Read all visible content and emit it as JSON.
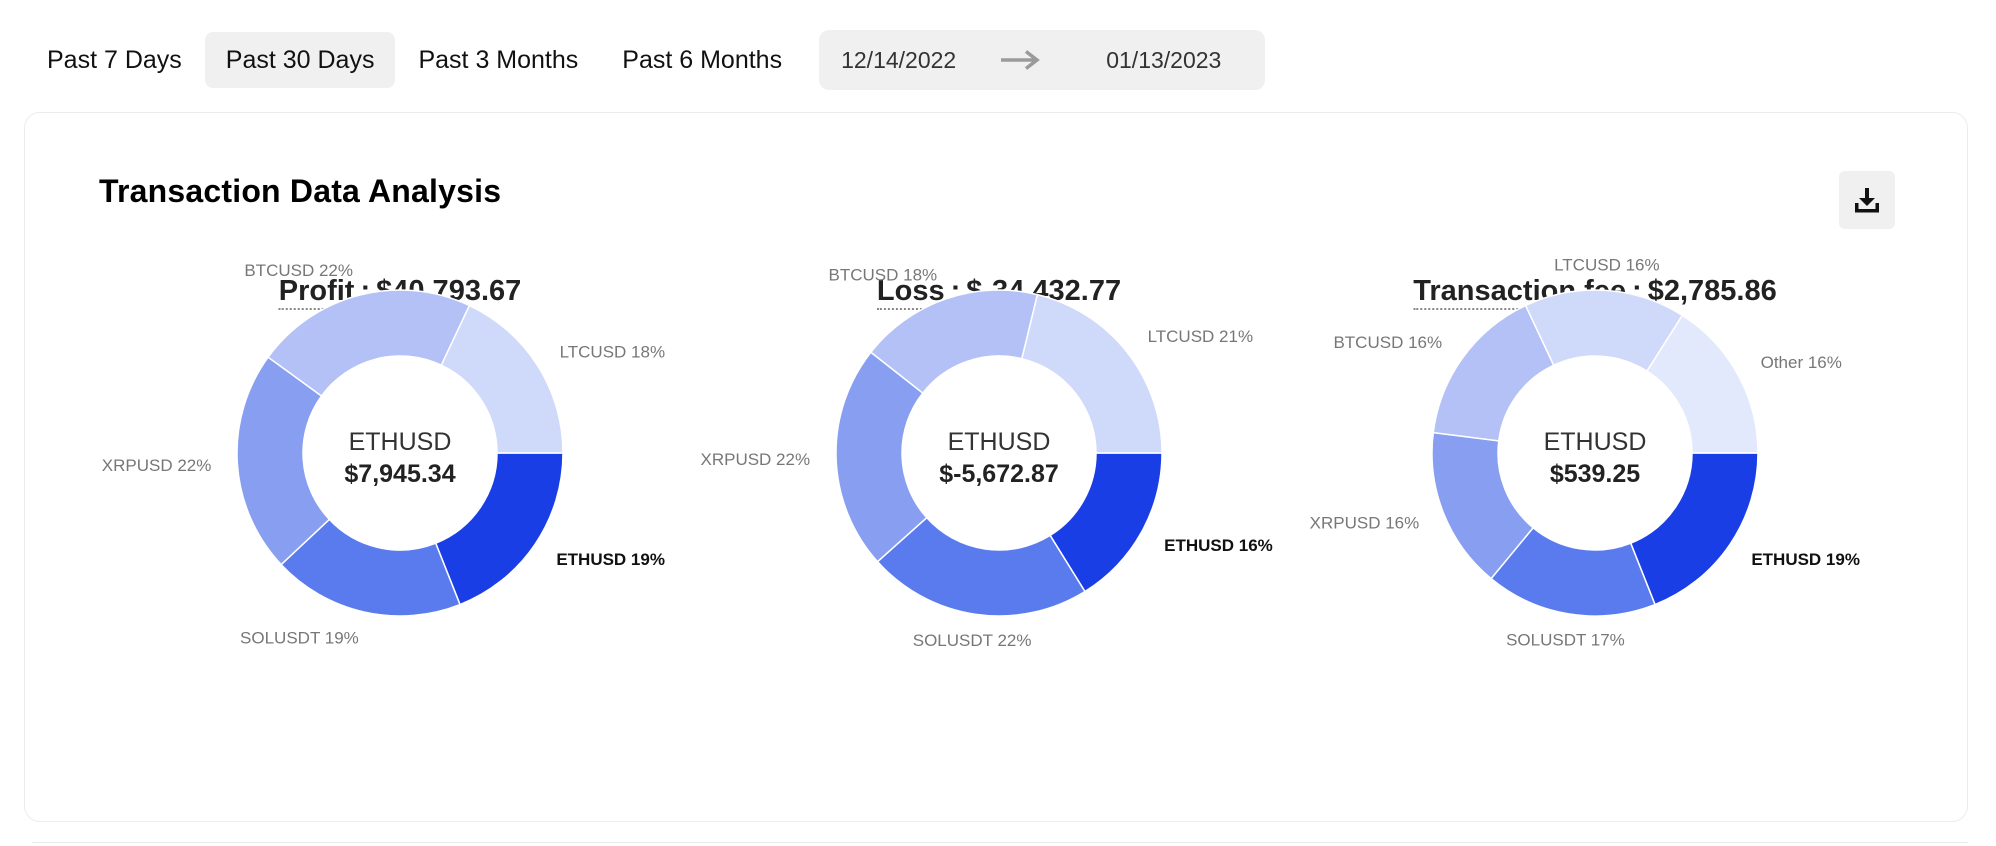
{
  "filters": {
    "tabs": [
      {
        "label": "Past 7 Days",
        "active": false
      },
      {
        "label": "Past 30 Days",
        "active": true
      },
      {
        "label": "Past 3 Months",
        "active": false
      },
      {
        "label": "Past 6 Months",
        "active": false
      }
    ],
    "start_date": "12/14/2022",
    "end_date": "01/13/2023"
  },
  "card": {
    "title": "Transaction Data Analysis",
    "download_icon": "download-icon"
  },
  "colors": {
    "ETHUSD": "#1a3ee6",
    "SOLUSDT": "#5a7bee",
    "XRPUSD": "#879ef1",
    "BTCUSD": "#b3c1f6",
    "LTCUSD": "#cfd9f9",
    "Other": "#e3e9fc"
  },
  "chart_data": [
    {
      "type": "pie",
      "title_label": "Profit",
      "title_value": "$40,793.67",
      "center_label": "ETHUSD",
      "center_value": "$7,945.34",
      "slices": [
        {
          "name": "ETHUSD",
          "percent": 19,
          "label": "ETHUSD 19%"
        },
        {
          "name": "SOLUSDT",
          "percent": 19,
          "label": "SOLUSDT 19%"
        },
        {
          "name": "XRPUSD",
          "percent": 22,
          "label": "XRPUSD 22%"
        },
        {
          "name": "BTCUSD",
          "percent": 22,
          "label": "BTCUSD 22%"
        },
        {
          "name": "LTCUSD",
          "percent": 18,
          "label": "LTCUSD 18%"
        }
      ]
    },
    {
      "type": "pie",
      "title_label": "Loss",
      "title_value": "$-34,432.77",
      "center_label": "ETHUSD",
      "center_value": "$-5,672.87",
      "slices": [
        {
          "name": "ETHUSD",
          "percent": 16,
          "label": "ETHUSD 16%"
        },
        {
          "name": "SOLUSDT",
          "percent": 22,
          "label": "SOLUSDT 22%"
        },
        {
          "name": "XRPUSD",
          "percent": 22,
          "label": "XRPUSD 22%"
        },
        {
          "name": "BTCUSD",
          "percent": 18,
          "label": "BTCUSD 18%"
        },
        {
          "name": "LTCUSD",
          "percent": 21,
          "label": "LTCUSD 21%"
        }
      ]
    },
    {
      "type": "pie",
      "title_label": "Transaction fee",
      "title_value": "$2,785.86",
      "center_label": "ETHUSD",
      "center_value": "$539.25",
      "slices": [
        {
          "name": "ETHUSD",
          "percent": 19,
          "label": "ETHUSD 19%"
        },
        {
          "name": "SOLUSDT",
          "percent": 17,
          "label": "SOLUSDT 17%"
        },
        {
          "name": "XRPUSD",
          "percent": 16,
          "label": "XRPUSD 16%"
        },
        {
          "name": "BTCUSD",
          "percent": 16,
          "label": "BTCUSD 16%"
        },
        {
          "name": "LTCUSD",
          "percent": 16,
          "label": "LTCUSD 16%"
        },
        {
          "name": "Other",
          "percent": 16,
          "label": "Other 16%"
        }
      ]
    }
  ]
}
